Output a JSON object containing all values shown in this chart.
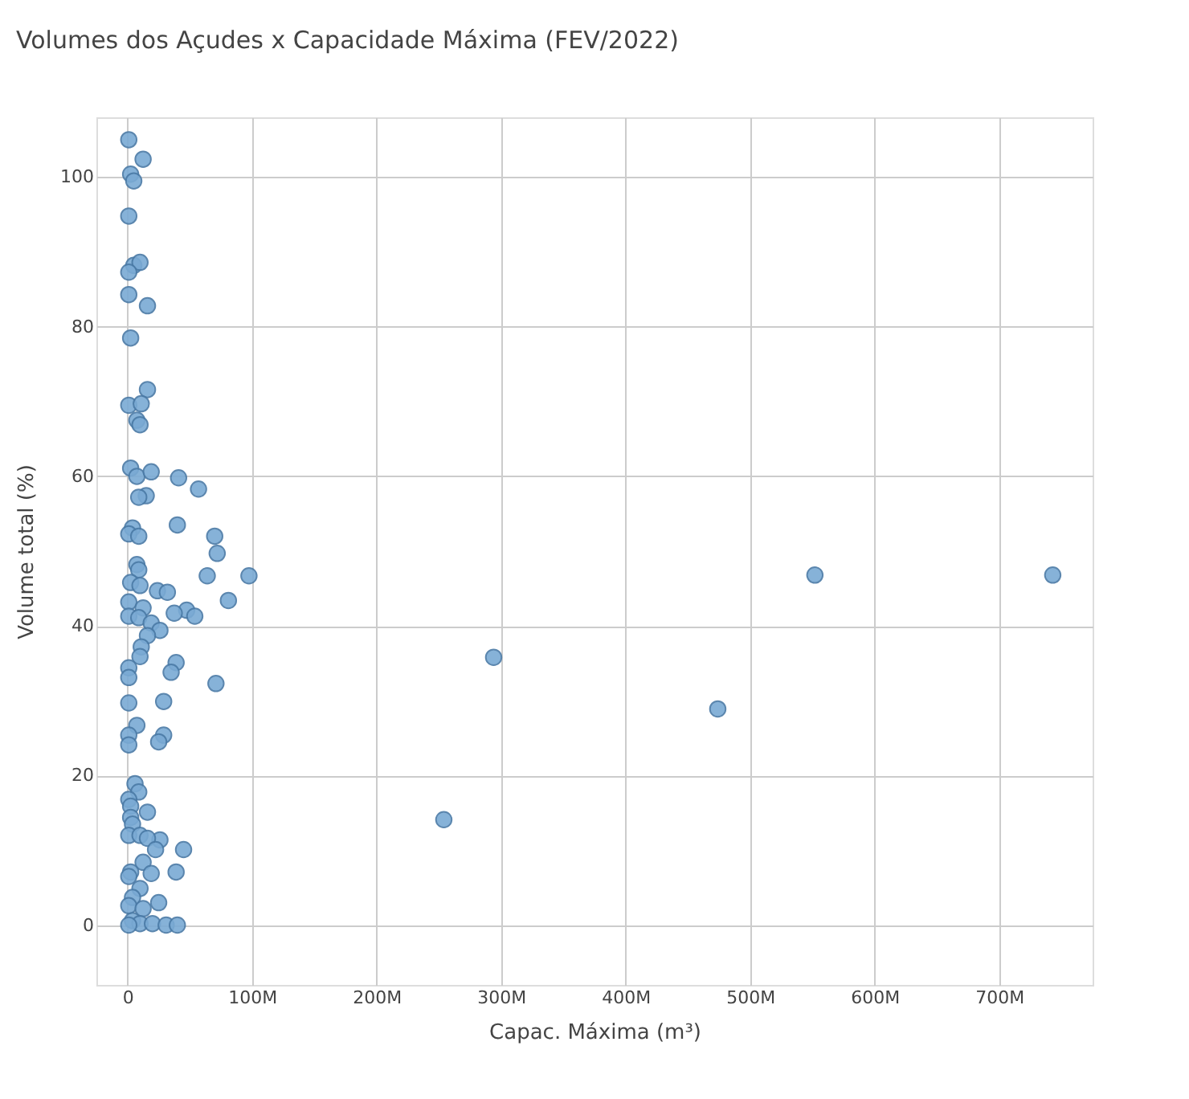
{
  "chart_data": {
    "type": "scatter",
    "title": "Volumes dos Açudes x  Capacidade Máxima (FEV/2022)",
    "xlabel": "Capac. Máxima (m³)",
    "ylabel": "Volume total (%)",
    "xlim": [
      -25000000,
      775000000
    ],
    "ylim": [
      -8,
      108
    ],
    "xticks": [
      {
        "value": 0,
        "label": "0"
      },
      {
        "value": 100000000,
        "label": "100M"
      },
      {
        "value": 200000000,
        "label": "200M"
      },
      {
        "value": 300000000,
        "label": "300M"
      },
      {
        "value": 400000000,
        "label": "400M"
      },
      {
        "value": 500000000,
        "label": "500M"
      },
      {
        "value": 600000000,
        "label": "600M"
      },
      {
        "value": 700000000,
        "label": "700M"
      }
    ],
    "yticks": [
      0,
      20,
      40,
      60,
      80,
      100
    ],
    "grid": true,
    "marker": "circle",
    "series": [
      {
        "color": "#7aaad4",
        "x": [
          1000000,
          12500000,
          2500000,
          5000000,
          1000000,
          5000000,
          10000000,
          1000000,
          1000000,
          16000000,
          2500000,
          16000000,
          1000000,
          11000000,
          7500000,
          10000000,
          2500000,
          7500000,
          19000000,
          41000000,
          57000000,
          15000000,
          9000000,
          40000000,
          4000000,
          1000000,
          9000000,
          70000000,
          72000000,
          7500000,
          9000000,
          64000000,
          97500000,
          2500000,
          10000000,
          24000000,
          32000000,
          81000000,
          1000000,
          12500000,
          47500000,
          37500000,
          54000000,
          1000000,
          9000000,
          19000000,
          26000000,
          16000000,
          11000000,
          10000000,
          39000000,
          35000000,
          1000000,
          1000000,
          71000000,
          29000000,
          1000000,
          7500000,
          1000000,
          29000000,
          25000000,
          1000000,
          6000000,
          9000000,
          1000000,
          2500000,
          16000000,
          2500000,
          4000000,
          1000000,
          10000000,
          26000000,
          16000000,
          45000000,
          22500000,
          12500000,
          2500000,
          1000000,
          19000000,
          39000000,
          10000000,
          4000000,
          25000000,
          1000000,
          12500000,
          4000000,
          10000000,
          20000000,
          31000000,
          40000000,
          1000000,
          254000000,
          294000000,
          474000000,
          552000000,
          743000000
        ],
        "values": [
          105,
          102.4,
          100.4,
          99.5,
          94.8,
          88.2,
          88.6,
          87.3,
          84.3,
          82.8,
          78.5,
          71.6,
          69.5,
          69.7,
          67.5,
          66.9,
          61.1,
          60,
          60.6,
          59.8,
          58.3,
          57.4,
          57.2,
          53.5,
          53.1,
          52.3,
          52,
          52,
          49.7,
          48.2,
          47.5,
          46.7,
          46.7,
          45.8,
          45.4,
          44.7,
          44.5,
          43.4,
          43.2,
          42.4,
          42.1,
          41.7,
          41.3,
          41.3,
          41.1,
          40.4,
          39.4,
          38.7,
          37.2,
          35.9,
          35.1,
          33.8,
          34.4,
          33.1,
          32.3,
          29.9,
          29.7,
          26.7,
          25.4,
          25.4,
          24.5,
          24.1,
          18.9,
          17.8,
          16.8,
          15.9,
          15.1,
          14.4,
          13.5,
          12,
          12,
          11.4,
          11.6,
          10.1,
          10.1,
          8.4,
          7.1,
          6.5,
          6.9,
          7.1,
          4.9,
          3.7,
          3,
          2.6,
          2.2,
          0.6,
          0.2,
          0.2,
          0,
          0,
          0,
          14.1,
          35.8,
          28.9,
          46.8,
          46.8
        ]
      }
    ]
  }
}
